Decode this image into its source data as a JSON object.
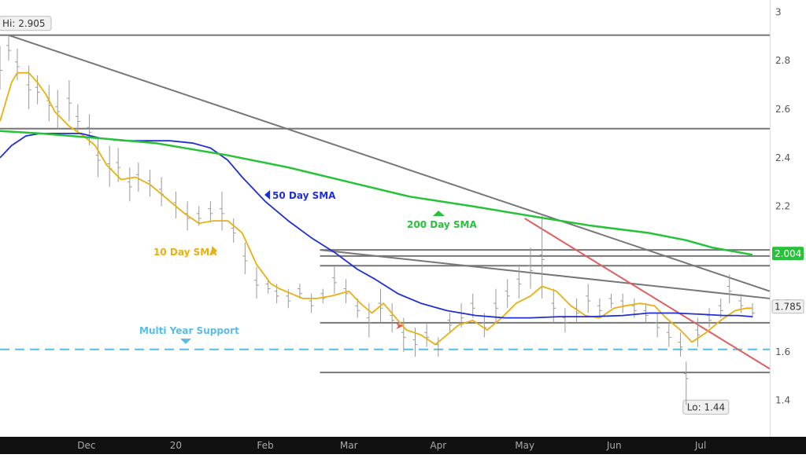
{
  "chart_data": {
    "type": "line",
    "title": "",
    "xlabel": "",
    "ylabel": "",
    "ylim": [
      1.25,
      3.05
    ],
    "y_ticks": [
      "3",
      "2.8",
      "2.6",
      "2.4",
      "2.2",
      "2",
      "1.8",
      "1.6",
      "1.4"
    ],
    "y_tick_values": [
      3.0,
      2.8,
      2.6,
      2.4,
      2.2,
      2.0,
      1.8,
      1.6,
      1.4
    ],
    "x_ticks": [
      "Dec",
      "20",
      "Feb",
      "Mar",
      "Apr",
      "May",
      "Jun",
      "Jul"
    ],
    "x_tick_dates": [
      "2019-12-01",
      "2020-01-01",
      "2020-02-01",
      "2020-03-01",
      "2020-04-01",
      "2020-05-01",
      "2020-06-01",
      "2020-07-01"
    ],
    "x_range": [
      "2019-11-01",
      "2020-07-25"
    ],
    "grid": false,
    "series": [
      {
        "name": "10 Day SMA",
        "color": "#e8b010",
        "points": [
          [
            "2019-11-01",
            2.55
          ],
          [
            "2019-11-03",
            2.63
          ],
          [
            "2019-11-05",
            2.71
          ],
          [
            "2019-11-07",
            2.75
          ],
          [
            "2019-11-11",
            2.75
          ],
          [
            "2019-11-14",
            2.71
          ],
          [
            "2019-11-17",
            2.66
          ],
          [
            "2019-11-20",
            2.59
          ],
          [
            "2019-11-25",
            2.53
          ],
          [
            "2019-11-30",
            2.49
          ],
          [
            "2019-12-04",
            2.45
          ],
          [
            "2019-12-08",
            2.37
          ],
          [
            "2019-12-13",
            2.31
          ],
          [
            "2019-12-18",
            2.32
          ],
          [
            "2019-12-23",
            2.29
          ],
          [
            "2019-12-28",
            2.24
          ],
          [
            "2020-01-04",
            2.17
          ],
          [
            "2020-01-09",
            2.13
          ],
          [
            "2020-01-14",
            2.14
          ],
          [
            "2020-01-19",
            2.14
          ],
          [
            "2020-01-24",
            2.09
          ],
          [
            "2020-01-29",
            1.96
          ],
          [
            "2020-02-03",
            1.88
          ],
          [
            "2020-02-06",
            1.86
          ],
          [
            "2020-02-10",
            1.84
          ],
          [
            "2020-02-14",
            1.82
          ],
          [
            "2020-02-19",
            1.82
          ],
          [
            "2020-02-24",
            1.83
          ],
          [
            "2020-03-01",
            1.85
          ],
          [
            "2020-03-05",
            1.8
          ],
          [
            "2020-03-09",
            1.76
          ],
          [
            "2020-03-13",
            1.8
          ],
          [
            "2020-03-18",
            1.73
          ],
          [
            "2020-03-21",
            1.69
          ],
          [
            "2020-03-26",
            1.67
          ],
          [
            "2020-03-31",
            1.63
          ],
          [
            "2020-04-03",
            1.66
          ],
          [
            "2020-04-08",
            1.71
          ],
          [
            "2020-04-13",
            1.73
          ],
          [
            "2020-04-18",
            1.69
          ],
          [
            "2020-04-23",
            1.74
          ],
          [
            "2020-04-28",
            1.8
          ],
          [
            "2020-05-03",
            1.83
          ],
          [
            "2020-05-07",
            1.87
          ],
          [
            "2020-05-12",
            1.85
          ],
          [
            "2020-05-17",
            1.79
          ],
          [
            "2020-05-22",
            1.75
          ],
          [
            "2020-05-27",
            1.74
          ],
          [
            "2020-06-01",
            1.78
          ],
          [
            "2020-06-05",
            1.79
          ],
          [
            "2020-06-10",
            1.8
          ],
          [
            "2020-06-15",
            1.79
          ],
          [
            "2020-06-19",
            1.74
          ],
          [
            "2020-06-24",
            1.69
          ],
          [
            "2020-06-28",
            1.64
          ],
          [
            "2020-07-03",
            1.68
          ],
          [
            "2020-07-08",
            1.73
          ],
          [
            "2020-07-13",
            1.77
          ],
          [
            "2020-07-17",
            1.78
          ],
          [
            "2020-07-19",
            1.78
          ]
        ]
      },
      {
        "name": "50 Day SMA",
        "color": "#1f2fd2",
        "points": [
          [
            "2019-11-01",
            2.4
          ],
          [
            "2019-11-05",
            2.45
          ],
          [
            "2019-11-10",
            2.49
          ],
          [
            "2019-11-15",
            2.5
          ],
          [
            "2019-11-22",
            2.5
          ],
          [
            "2019-11-29",
            2.5
          ],
          [
            "2019-12-06",
            2.48
          ],
          [
            "2019-12-14",
            2.47
          ],
          [
            "2019-12-22",
            2.47
          ],
          [
            "2019-12-30",
            2.47
          ],
          [
            "2020-01-07",
            2.46
          ],
          [
            "2020-01-13",
            2.44
          ],
          [
            "2020-01-19",
            2.39
          ],
          [
            "2020-01-24",
            2.32
          ],
          [
            "2020-02-01",
            2.22
          ],
          [
            "2020-02-09",
            2.14
          ],
          [
            "2020-02-17",
            2.07
          ],
          [
            "2020-02-25",
            2.01
          ],
          [
            "2020-03-04",
            1.94
          ],
          [
            "2020-03-10",
            1.9
          ],
          [
            "2020-03-18",
            1.84
          ],
          [
            "2020-03-26",
            1.8
          ],
          [
            "2020-04-04",
            1.77
          ],
          [
            "2020-04-14",
            1.75
          ],
          [
            "2020-04-24",
            1.74
          ],
          [
            "2020-05-03",
            1.74
          ],
          [
            "2020-05-13",
            1.745
          ],
          [
            "2020-05-24",
            1.745
          ],
          [
            "2020-06-04",
            1.75
          ],
          [
            "2020-06-13",
            1.76
          ],
          [
            "2020-06-22",
            1.76
          ],
          [
            "2020-07-01",
            1.755
          ],
          [
            "2020-07-09",
            1.75
          ],
          [
            "2020-07-14",
            1.75
          ],
          [
            "2020-07-19",
            1.745
          ]
        ]
      },
      {
        "name": "200 Day SMA",
        "color": "#27c23a",
        "points": [
          [
            "2019-11-01",
            2.51
          ],
          [
            "2019-11-15",
            2.5
          ],
          [
            "2019-12-06",
            2.48
          ],
          [
            "2019-12-25",
            2.46
          ],
          [
            "2020-01-19",
            2.41
          ],
          [
            "2020-02-09",
            2.36
          ],
          [
            "2020-03-01",
            2.3
          ],
          [
            "2020-03-22",
            2.24
          ],
          [
            "2020-04-13",
            2.2
          ],
          [
            "2020-05-03",
            2.16
          ],
          [
            "2020-05-24",
            2.12
          ],
          [
            "2020-06-13",
            2.09
          ],
          [
            "2020-06-26",
            2.06
          ],
          [
            "2020-07-05",
            2.03
          ],
          [
            "2020-07-19",
            2.0
          ]
        ]
      }
    ],
    "price_bars": {
      "color": "#999999",
      "description_values": "daily high/low ranges",
      "ranges": [
        [
          "2019-11-01",
          2.68,
          2.86
        ],
        [
          "2019-11-04",
          2.8,
          2.905
        ],
        [
          "2019-11-07",
          2.72,
          2.85
        ],
        [
          "2019-11-11",
          2.6,
          2.78
        ],
        [
          "2019-11-14",
          2.62,
          2.74
        ],
        [
          "2019-11-18",
          2.55,
          2.7
        ],
        [
          "2019-11-21",
          2.52,
          2.68
        ],
        [
          "2019-11-25",
          2.55,
          2.72
        ],
        [
          "2019-11-28",
          2.5,
          2.62
        ],
        [
          "2019-12-02",
          2.45,
          2.58
        ],
        [
          "2019-12-05",
          2.32,
          2.48
        ],
        [
          "2019-12-09",
          2.28,
          2.45
        ],
        [
          "2019-12-12",
          2.3,
          2.44
        ],
        [
          "2019-12-16",
          2.22,
          2.36
        ],
        [
          "2019-12-19",
          2.26,
          2.38
        ],
        [
          "2019-12-23",
          2.24,
          2.35
        ],
        [
          "2019-12-27",
          2.2,
          2.32
        ],
        [
          "2020-01-01",
          2.15,
          2.26
        ],
        [
          "2020-01-05",
          2.1,
          2.22
        ],
        [
          "2020-01-09",
          2.12,
          2.2
        ],
        [
          "2020-01-13",
          2.14,
          2.22
        ],
        [
          "2020-01-17",
          2.1,
          2.26
        ],
        [
          "2020-01-21",
          2.05,
          2.15
        ],
        [
          "2020-01-25",
          1.92,
          2.05
        ],
        [
          "2020-01-29",
          1.82,
          1.95
        ],
        [
          "2020-02-02",
          1.84,
          1.9
        ],
        [
          "2020-02-05",
          1.8,
          1.88
        ],
        [
          "2020-02-09",
          1.78,
          1.86
        ],
        [
          "2020-02-13",
          1.82,
          1.88
        ],
        [
          "2020-02-17",
          1.76,
          1.84
        ],
        [
          "2020-02-21",
          1.8,
          1.86
        ],
        [
          "2020-02-25",
          1.84,
          1.95
        ],
        [
          "2020-02-29",
          1.8,
          1.9
        ],
        [
          "2020-03-04",
          1.74,
          1.82
        ],
        [
          "2020-03-08",
          1.66,
          1.8
        ],
        [
          "2020-03-12",
          1.72,
          1.86
        ],
        [
          "2020-03-16",
          1.68,
          1.8
        ],
        [
          "2020-03-20",
          1.6,
          1.74
        ],
        [
          "2020-03-24",
          1.58,
          1.7
        ],
        [
          "2020-03-28",
          1.62,
          1.72
        ],
        [
          "2020-04-01",
          1.58,
          1.66
        ],
        [
          "2020-04-05",
          1.68,
          1.76
        ],
        [
          "2020-04-09",
          1.7,
          1.8
        ],
        [
          "2020-04-13",
          1.74,
          1.84
        ],
        [
          "2020-04-17",
          1.66,
          1.76
        ],
        [
          "2020-04-21",
          1.72,
          1.86
        ],
        [
          "2020-04-25",
          1.78,
          1.9
        ],
        [
          "2020-04-29",
          1.82,
          1.96
        ],
        [
          "2020-05-03",
          1.86,
          2.03
        ],
        [
          "2020-05-07",
          1.82,
          2.16
        ],
        [
          "2020-05-11",
          1.72,
          1.86
        ],
        [
          "2020-05-15",
          1.68,
          1.78
        ],
        [
          "2020-05-19",
          1.72,
          1.82
        ],
        [
          "2020-05-23",
          1.76,
          1.88
        ],
        [
          "2020-05-27",
          1.74,
          1.82
        ],
        [
          "2020-05-31",
          1.78,
          1.84
        ],
        [
          "2020-06-04",
          1.76,
          1.84
        ],
        [
          "2020-06-08",
          1.74,
          1.82
        ],
        [
          "2020-06-12",
          1.72,
          1.8
        ],
        [
          "2020-06-16",
          1.66,
          1.76
        ],
        [
          "2020-06-20",
          1.62,
          1.72
        ],
        [
          "2020-06-24",
          1.58,
          1.68
        ],
        [
          "2020-06-26",
          1.44,
          1.56
        ],
        [
          "2020-06-30",
          1.62,
          1.74
        ],
        [
          "2020-07-04",
          1.7,
          1.78
        ],
        [
          "2020-07-08",
          1.74,
          1.82
        ],
        [
          "2020-07-11",
          1.8,
          1.92
        ],
        [
          "2020-07-15",
          1.76,
          1.84
        ],
        [
          "2020-07-19",
          1.74,
          1.8
        ]
      ]
    },
    "horizontal_levels": [
      {
        "value": 2.905,
        "color": "#777777",
        "style": "solid"
      },
      {
        "value": 2.52,
        "color": "#777777",
        "style": "solid"
      },
      {
        "value": 2.02,
        "color": "#777777",
        "style": "solid"
      },
      {
        "value": 1.995,
        "color": "#777777",
        "style": "solid"
      },
      {
        "value": 1.955,
        "color": "#777777",
        "style": "solid"
      },
      {
        "value": 1.72,
        "color": "#777777",
        "style": "solid"
      },
      {
        "value": 1.515,
        "color": "#777777",
        "style": "solid"
      },
      {
        "value": 1.61,
        "color": "#5bbce6",
        "style": "dashed"
      }
    ],
    "trendlines": [
      {
        "from": [
          "2019-11-04",
          2.905
        ],
        "to": [
          "2020-07-25",
          1.85
        ],
        "color": "#777777"
      },
      {
        "from": [
          "2020-02-20",
          2.02
        ],
        "to": [
          "2020-07-25",
          1.82
        ],
        "color": "#777777"
      },
      {
        "from": [
          "2020-05-01",
          2.15
        ],
        "to": [
          "2020-07-25",
          1.53
        ],
        "color": "#e06060"
      }
    ],
    "annotations": {
      "hi": "Hi: 2.905",
      "lo": "Lo: 1.44",
      "last_200": "2.004",
      "last_price": "1.785",
      "label_10": "10 Day SMA",
      "label_50": "50 Day SMA",
      "label_200": "200 Day SMA",
      "support": "Multi Year Support"
    },
    "colors": {
      "tag_green": "#27c23a",
      "tag_grey": "#f0f0f0",
      "axis_band": "#ffffff",
      "bottom_band": "#111111",
      "tick_text": "#555555",
      "support_text": "#5bbce6",
      "label_10": "#e8b010",
      "label_50": "#1f2fd2",
      "label_200": "#27c23a",
      "arrow_red": "#e05050"
    }
  }
}
